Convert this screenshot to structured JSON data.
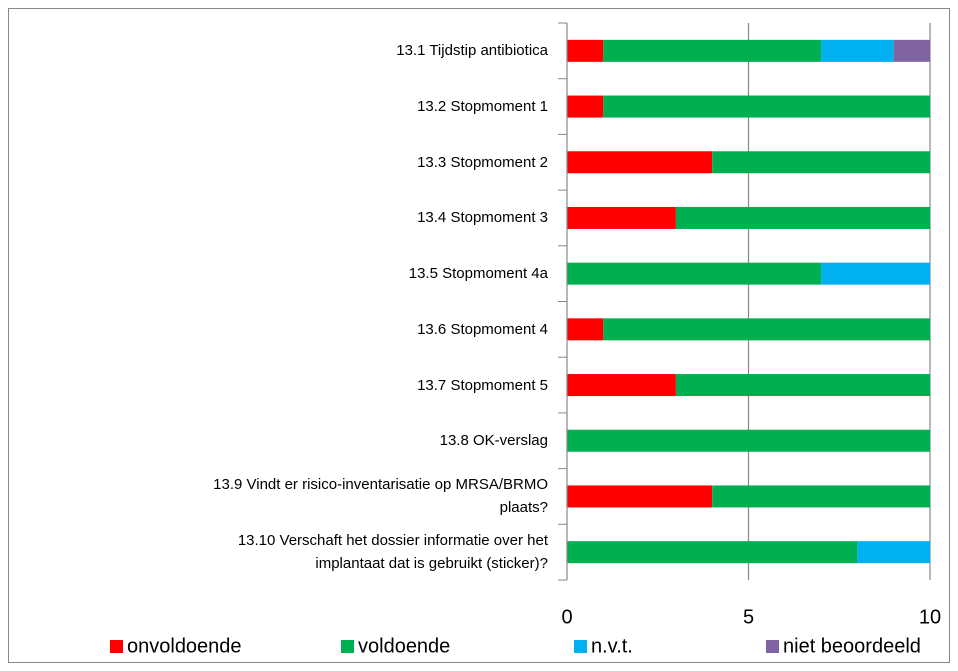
{
  "chart_data": {
    "type": "stacked_barh",
    "categories": [
      "13.1 Tijdstip antibiotica",
      "13.2 Stopmoment 1",
      "13.3 Stopmoment 2",
      "13.4 Stopmoment 3",
      "13.5 Stopmoment 4a",
      "13.6 Stopmoment 4",
      "13.7 Stopmoment 5",
      "13.8 OK-verslag",
      "13.9 Vindt er risico-inventarisatie op MRSA/BRMO\nplaats?",
      "13.10 Verschaft het dossier informatie over het\nimplantaat dat is gebruikt (sticker)?"
    ],
    "series": [
      {
        "name": "onvoldoende",
        "color": "#ff0000",
        "values": [
          1,
          1,
          4,
          3,
          0,
          1,
          3,
          0,
          4,
          0
        ]
      },
      {
        "name": "voldoende",
        "color": "#00b050",
        "values": [
          6,
          9,
          6,
          7,
          7,
          9,
          7,
          10,
          6,
          8
        ]
      },
      {
        "name": "n.v.t.",
        "color": "#00b0f0",
        "values": [
          2,
          0,
          0,
          0,
          3,
          0,
          0,
          0,
          0,
          2
        ]
      },
      {
        "name": "niet beoordeeld",
        "color": "#8064a2",
        "values": [
          1,
          0,
          0,
          0,
          0,
          0,
          0,
          0,
          0,
          0
        ]
      }
    ],
    "xlim": [
      0,
      10
    ],
    "xticks": [
      0,
      5,
      10
    ],
    "grid": true,
    "legend": "bottom"
  }
}
